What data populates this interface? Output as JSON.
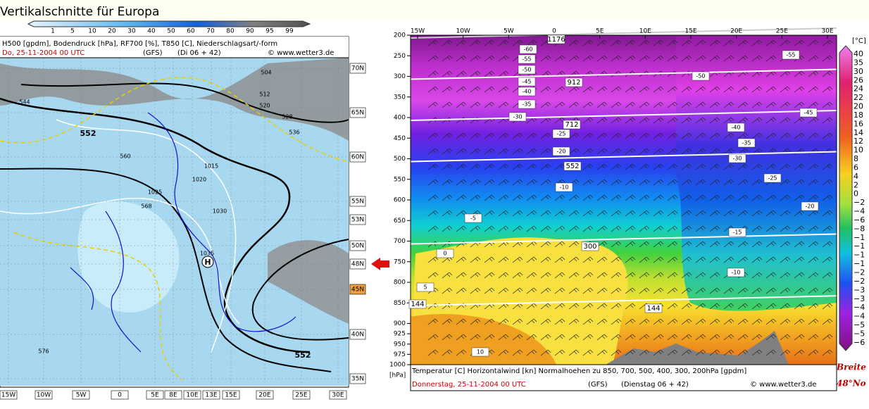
{
  "header": {
    "title": "Vertikalschnitte für Europa",
    "scale_labels": [
      "1",
      "5",
      "10",
      "20",
      "30",
      "40",
      "50",
      "60",
      "70",
      "80",
      "90",
      "95",
      "99"
    ]
  },
  "left_map": {
    "caption": "H500 [gpdm], Bodendruck [hPa], RF700 [%], T850 [C], Niederschlagsart/-form",
    "date": "Do, 25-11-2004  00 UTC",
    "model": "(GFS)",
    "run": "(Di 06 + 42)",
    "credit": "© www.wetter3.de",
    "latitudes": [
      "70N",
      "65N",
      "60N",
      "55N",
      "53N",
      "50N",
      "48N",
      "45N",
      "40N",
      "35N"
    ],
    "longitudes": [
      "15W",
      "10W",
      "5W",
      "0",
      "5E",
      "8E",
      "10E",
      "13E",
      "15E",
      "20E",
      "25E",
      "30E"
    ],
    "contour_labels": [
      "552",
      "544",
      "560",
      "568",
      "576",
      "504",
      "512",
      "520",
      "528",
      "536",
      "552",
      "1035",
      "1025",
      "1020",
      "1015",
      "1030"
    ],
    "high": "H"
  },
  "cross_section": {
    "longitudes": [
      "15W",
      "10W",
      "5W",
      "0",
      "5E",
      "10E",
      "15E",
      "20E",
      "25E",
      "30E"
    ],
    "pressure_levels": [
      200,
      250,
      300,
      350,
      400,
      450,
      500,
      550,
      600,
      650,
      700,
      750,
      800,
      850,
      900,
      925,
      950,
      975,
      1000
    ],
    "pressure_unit": "[hPa]",
    "height_labels": [
      "1176",
      "912",
      "712",
      "552",
      "300",
      "144",
      "144"
    ],
    "temp_labels": [
      "-60",
      "-55",
      "-50",
      "-45",
      "-40",
      "-35",
      "-30",
      "-25",
      "-20",
      "-10",
      "-5",
      "0",
      "5",
      "10",
      "-55",
      "-50",
      "-45",
      "-40",
      "-35",
      "-30",
      "-25",
      "-20",
      "-15",
      "-10"
    ],
    "colorbar_unit": "[°C]",
    "colorbar_labels": [
      "40",
      "35",
      "30",
      "26",
      "24",
      "22",
      "20",
      "18",
      "16",
      "14",
      "12",
      "10",
      "8",
      "6",
      "4",
      "2",
      "0",
      "−2",
      "−4",
      "−6",
      "−8",
      "−1",
      "−1",
      "−1",
      "−1",
      "−2",
      "−2",
      "−3",
      "−3",
      "−4",
      "−4",
      "−5",
      "−5",
      "−6"
    ],
    "caption": "Temperatur [C]  Horizontalwind [kn]  Normalhoehen zu 850, 700, 500, 400, 300, 200hPa [gpdm]",
    "date": "Donnerstag, 25-11-2004   00 UTC",
    "model": "(GFS)",
    "run": "(Dienstag 06 + 42)",
    "credit": "© www.wetter3.de",
    "latitude_title": "Breite",
    "latitude_value": "48°No"
  }
}
